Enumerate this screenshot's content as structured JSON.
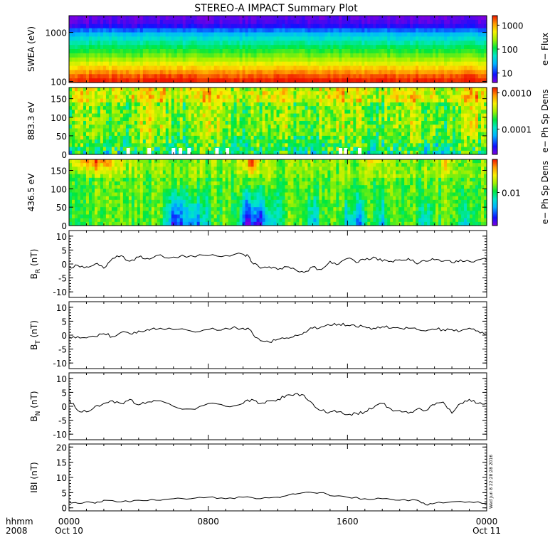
{
  "title": "STEREO-A IMPACT Summary Plot",
  "timestamp": "Wed Jun 8 22:28:28 2016",
  "x_axis": {
    "row1_label": "hhmm",
    "row2_label": "2008",
    "ticks": [
      {
        "t": 0,
        "time": "0000",
        "date": "Oct 10"
      },
      {
        "t": 8,
        "time": "0800",
        "date": ""
      },
      {
        "t": 16,
        "time": "1600",
        "date": ""
      },
      {
        "t": 24,
        "time": "0000",
        "date": "Oct 11"
      }
    ],
    "range_hours": [
      0,
      24
    ]
  },
  "colors": {
    "line": "#000000",
    "white_gap": "#ffffff"
  },
  "chart_data": [
    {
      "type": "heatmap",
      "ylabel": "SWEA (eV)",
      "ylog": true,
      "ylim": [
        95,
        2200
      ],
      "yticks": [
        {
          "v": 100,
          "label": "100"
        },
        {
          "v": 1000,
          "label": "1000"
        }
      ],
      "colorbar": {
        "label": "e− Flux",
        "log": true,
        "range": [
          4,
          2500
        ],
        "ticks": [
          {
            "v": 10,
            "label": "10"
          },
          {
            "v": 100,
            "label": "100"
          },
          {
            "v": 1000,
            "label": "1000"
          }
        ]
      },
      "profile": [
        [
          1800,
          0.03
        ],
        [
          1300,
          0.1
        ],
        [
          1000,
          0.28
        ],
        [
          700,
          0.4
        ],
        [
          450,
          0.52
        ],
        [
          300,
          0.63
        ],
        [
          200,
          0.78
        ],
        [
          140,
          0.92
        ],
        [
          100,
          1.0
        ]
      ]
    },
    {
      "type": "heatmap",
      "ylabel": "883.3 eV",
      "ylim": [
        0,
        180
      ],
      "yticks": [
        {
          "v": 0,
          "label": "0"
        },
        {
          "v": 50,
          "label": "50"
        },
        {
          "v": 100,
          "label": "100"
        },
        {
          "v": 150,
          "label": "150"
        }
      ],
      "colorbar": {
        "label": "e− Ph Sp Dens",
        "log": true,
        "range": [
          2e-05,
          0.0014
        ],
        "ticks": [
          {
            "v": 0.0001,
            "label": "0.0001"
          },
          {
            "v": 0.001,
            "label": "0.0010"
          }
        ]
      },
      "data_gaps_hours": [
        3.3,
        4.5,
        5.9,
        6.3,
        6.8,
        8.4,
        9.0,
        15.5,
        15.8,
        16.6
      ]
    },
    {
      "type": "heatmap",
      "ylabel": "436.5 eV",
      "ylim": [
        0,
        180
      ],
      "yticks": [
        {
          "v": 0,
          "label": "0"
        },
        {
          "v": 50,
          "label": "50"
        },
        {
          "v": 100,
          "label": "100"
        },
        {
          "v": 150,
          "label": "150"
        }
      ],
      "colorbar": {
        "label": "e− Ph Sp Dens",
        "log": true,
        "range": [
          0.002,
          0.05
        ],
        "ticks": [
          {
            "v": 0.01,
            "label": "0.01"
          }
        ]
      },
      "dips": [
        [
          6.2,
          0.6,
          0.85
        ],
        [
          7.2,
          0.8,
          0.6
        ],
        [
          10.3,
          0.5,
          1.0
        ],
        [
          10.9,
          0.5,
          0.9
        ],
        [
          11.4,
          0.6,
          0.6
        ],
        [
          14.0,
          0.4,
          0.5
        ],
        [
          16.0,
          0.3,
          0.5
        ],
        [
          16.7,
          0.4,
          0.6
        ],
        [
          18.0,
          0.3,
          0.45
        ],
        [
          20.5,
          0.4,
          0.4
        ],
        [
          22.8,
          0.3,
          0.4
        ]
      ],
      "peaks": [
        [
          1.5,
          1.4,
          0.8
        ],
        [
          10.5,
          0.4,
          1.0
        ],
        [
          17.5,
          0.5,
          0.4
        ],
        [
          21.5,
          0.5,
          0.4
        ]
      ]
    },
    {
      "type": "line",
      "ylabel": "B",
      "ylabel_sub": "R",
      "ylabel_unit": "(nT)",
      "ylim": [
        -12,
        12
      ],
      "yticks": [
        -10,
        -5,
        0,
        5,
        10
      ],
      "x_hours": [
        0,
        0.5,
        1,
        1.5,
        2,
        2.5,
        3,
        3.5,
        4,
        4.5,
        5,
        6,
        7,
        8,
        9,
        10,
        10.3,
        10.6,
        11,
        11.5,
        12,
        12.5,
        13,
        13.5,
        14,
        14.5,
        15,
        15.5,
        16,
        16.5,
        17,
        17.5,
        18,
        18.5,
        19,
        19.5,
        20,
        20.5,
        21,
        21.5,
        22,
        22.5,
        23,
        23.5,
        24
      ],
      "values": [
        -1,
        -0.5,
        -1,
        0,
        -1.5,
        2,
        3,
        1,
        2.5,
        2,
        3,
        2.5,
        3,
        3,
        3,
        3.5,
        3,
        0,
        -1.5,
        -1,
        -2,
        -1,
        -2,
        -3,
        -1,
        -2,
        1,
        0,
        2,
        0.5,
        1.5,
        2.5,
        1,
        1,
        1.5,
        2,
        0,
        1,
        1.5,
        1,
        0.5,
        1.5,
        1,
        1.5,
        1.5
      ]
    },
    {
      "type": "line",
      "ylabel": "B",
      "ylabel_sub": "T",
      "ylabel_unit": "(nT)",
      "ylim": [
        -12,
        12
      ],
      "yticks": [
        -10,
        -5,
        0,
        5,
        10
      ],
      "x_hours": [
        0,
        0.5,
        1,
        1.5,
        2,
        2.5,
        3,
        3.5,
        4,
        4.5,
        5,
        6,
        7,
        8,
        9,
        10,
        10.3,
        10.6,
        11,
        11.5,
        12,
        12.5,
        13,
        13.5,
        14,
        14.5,
        15,
        15.5,
        16,
        16.5,
        17,
        17.5,
        18,
        18.5,
        19,
        19.5,
        20,
        20.5,
        21,
        21.5,
        22,
        22.5,
        23,
        23.5,
        24
      ],
      "values": [
        -0.5,
        -0.5,
        -1,
        -0.5,
        0.5,
        -0.5,
        1,
        0.5,
        1.5,
        2,
        2,
        2,
        1.5,
        2,
        2.5,
        2.5,
        2.5,
        0,
        -2,
        -2.5,
        -1.5,
        -1,
        0,
        1,
        2.5,
        3,
        3.5,
        4,
        3.5,
        3,
        3,
        2.5,
        3,
        2.5,
        2.5,
        2.5,
        2,
        1.5,
        2,
        2,
        2,
        1.5,
        2.5,
        1.5,
        0.5
      ]
    },
    {
      "type": "line",
      "ylabel": "B",
      "ylabel_sub": "N",
      "ylabel_unit": "(nT)",
      "ylim": [
        -12,
        12
      ],
      "yticks": [
        -10,
        -5,
        0,
        5,
        10
      ],
      "x_hours": [
        0,
        0.5,
        1,
        1.5,
        2,
        2.5,
        3,
        3.5,
        4,
        4.5,
        5,
        6,
        7,
        8,
        9,
        10,
        10.5,
        11,
        11.5,
        12,
        12.5,
        13,
        13.5,
        14,
        14.5,
        15,
        15.5,
        16,
        16.5,
        17,
        17.5,
        18,
        18.5,
        19,
        19.5,
        20,
        20.5,
        21,
        21.5,
        22,
        22.5,
        23,
        23.5,
        24
      ],
      "values": [
        2.5,
        -1.5,
        -2,
        0,
        1,
        2,
        1,
        2.5,
        0.5,
        1.5,
        2,
        0,
        -1,
        1,
        0,
        1,
        2.5,
        1,
        2,
        2.5,
        4,
        4.5,
        4,
        1,
        -1.5,
        -2,
        -2,
        -3,
        -2.5,
        -2,
        -0.5,
        1,
        -1,
        -1.5,
        -2.5,
        -1,
        -1.5,
        0.5,
        1.5,
        -2.5,
        1,
        2.5,
        1,
        1
      ]
    },
    {
      "type": "line",
      "ylabel": "IBI",
      "ylabel_unit": "(nT)",
      "ylim": [
        -1,
        21
      ],
      "yticks": [
        0,
        5,
        10,
        15,
        20
      ],
      "x_hours": [
        0,
        0.5,
        1,
        1.5,
        2,
        3,
        4,
        5,
        6,
        7,
        8,
        9,
        10,
        11,
        12,
        12.5,
        13,
        13.5,
        14,
        14.5,
        15,
        16,
        17,
        18,
        19,
        20,
        20.5,
        21,
        22,
        23,
        24
      ],
      "values": [
        2,
        1.5,
        2,
        1.5,
        2.5,
        2,
        2.5,
        2.5,
        3,
        3,
        3.5,
        3,
        3.5,
        3,
        3.5,
        4,
        4.5,
        5,
        5,
        5,
        4,
        3.5,
        3,
        3,
        2.5,
        2.5,
        1,
        1.5,
        2,
        2,
        1.5
      ]
    }
  ]
}
